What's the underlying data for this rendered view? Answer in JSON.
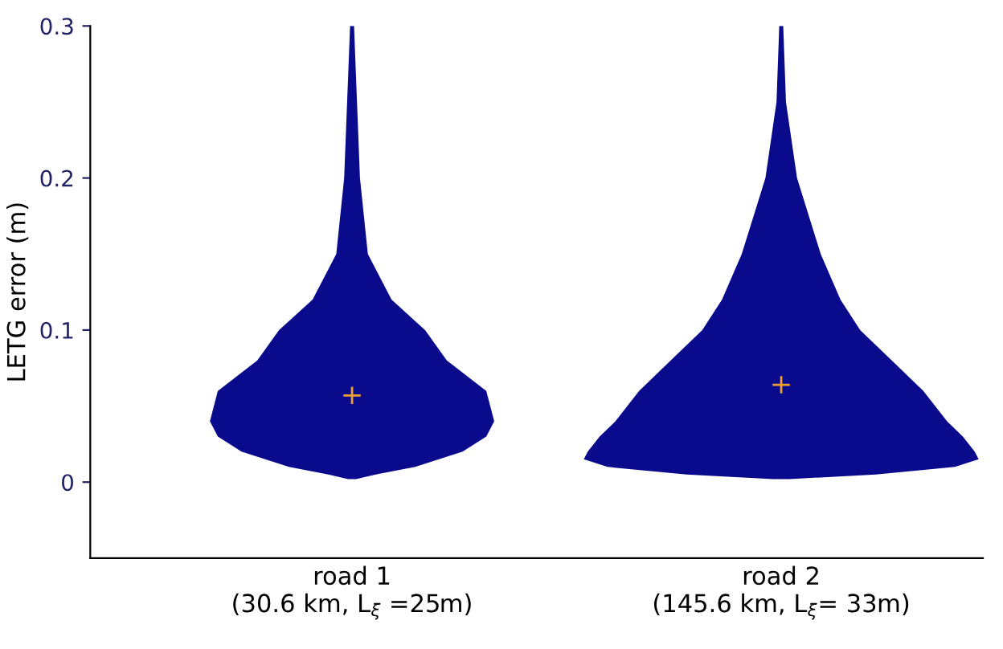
{
  "chart_data": {
    "type": "scatter",
    "ylabel": "LETG error (m)",
    "categories": [
      "road 1\n(30.6 km, L$_{ξ}$ =25m)",
      "road 2\n(145.6 km, L$_{ξ}$= 33m)"
    ],
    "ylim": [
      -0.05,
      0.3
    ],
    "yticks": [
      0,
      0.1,
      0.2,
      0.3
    ],
    "series": [
      {
        "marker": "cross",
        "color": "#f0a030",
        "values": [
          0.057,
          0.064
        ]
      }
    ]
  }
}
